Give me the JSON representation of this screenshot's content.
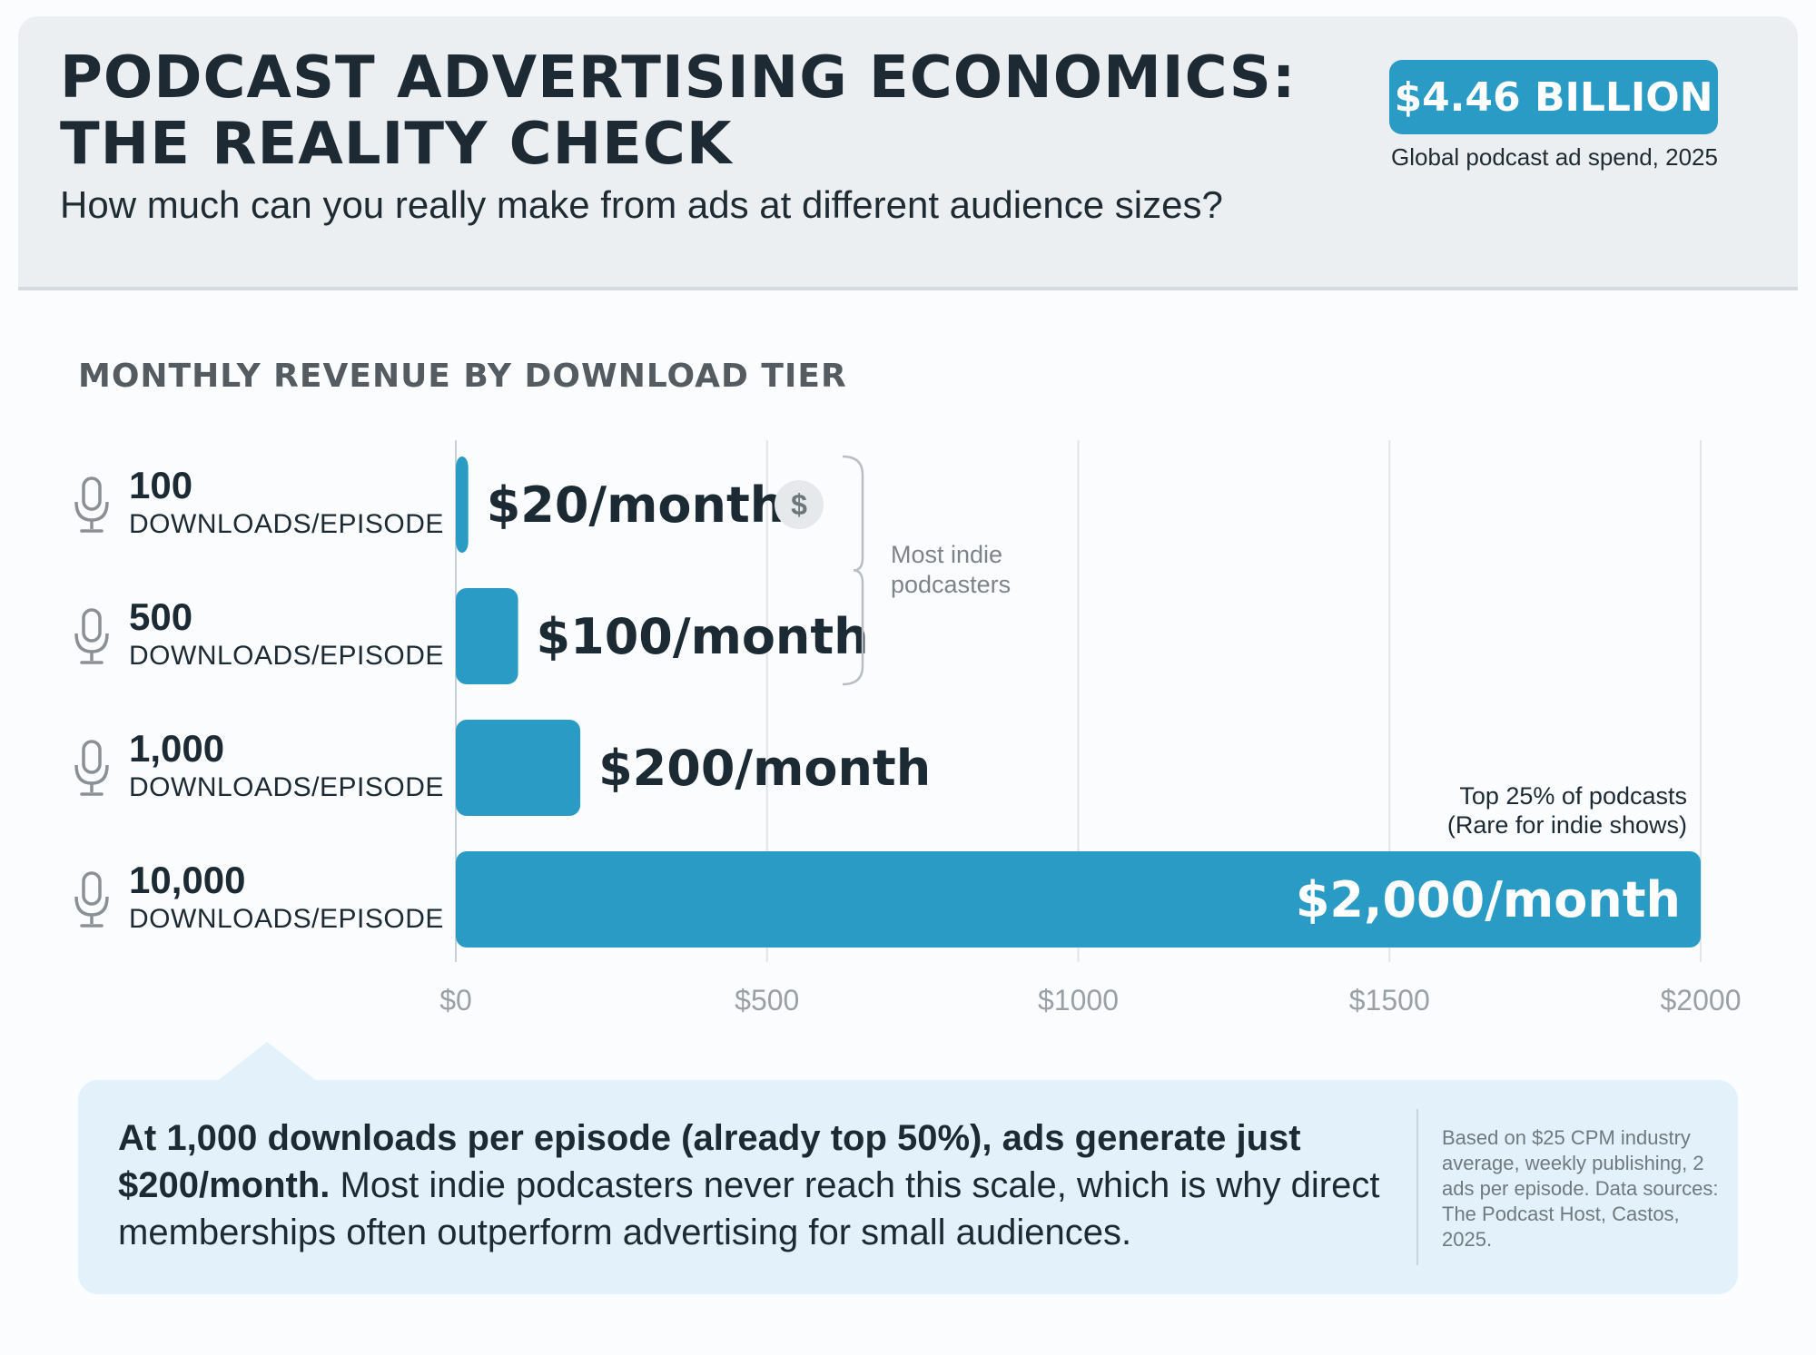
{
  "header": {
    "title": "PODCAST ADVERTISING ECONOMICS: THE REALITY CHECK",
    "subtitle": "How much can you really make from ads at different audience sizes?",
    "badge_value": "$4.46 BILLION",
    "badge_caption": "Global podcast ad spend, 2025",
    "accent_color": "#2a9bc4"
  },
  "section_title": "MONTHLY REVENUE BY DOWNLOAD TIER",
  "chart_data": {
    "type": "bar",
    "orientation": "horizontal",
    "categories": [
      "100",
      "500",
      "1,000",
      "10,000"
    ],
    "category_unit": "DOWNLOADS/EPISODE",
    "values": [
      20,
      100,
      200,
      2000
    ],
    "value_labels": [
      "$20/month",
      "$100/month",
      "$200/month",
      "$2,000/month"
    ],
    "xlim": [
      0,
      2000
    ],
    "x_ticks": [
      0,
      500,
      1000,
      1500,
      2000
    ],
    "x_tick_labels": [
      "$0",
      "$500",
      "$1000",
      "$1500",
      "$2000"
    ],
    "grid": true,
    "bar_color": "#2a9bc4",
    "icon": "microphone-icon",
    "annotations": {
      "bracket_label": [
        "Most indie",
        "podcasters"
      ],
      "top_note": [
        "Top 25% of podcasts",
        "(Rare for indie shows)"
      ]
    }
  },
  "callout": {
    "bold_text": "At 1,000 downloads per episode (already top 50%), ads generate just $200/month.",
    "text": " Most indie podcasters never reach this scale, which is why direct memberships often outperform advertising for small audiences.",
    "source": "Based on $25 CPM industry average, weekly publishing, 2 ads per episode. Data sources: The Podcast Host, Castos, 2025."
  }
}
